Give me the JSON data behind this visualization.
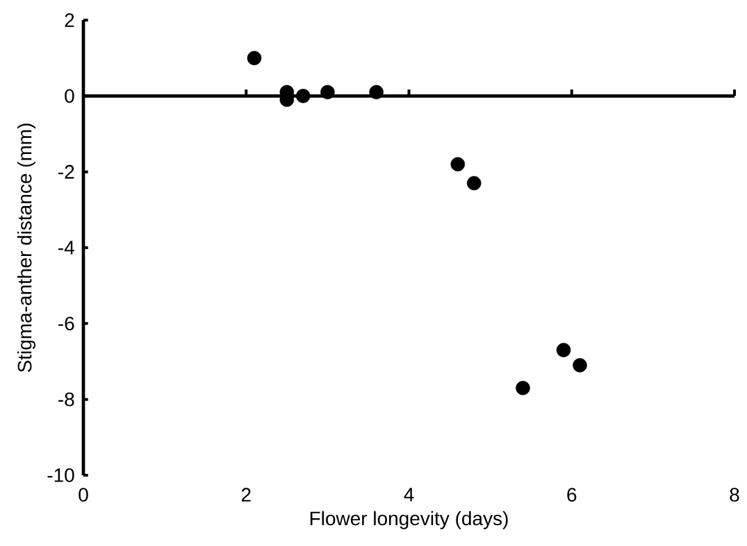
{
  "chart_data": {
    "type": "scatter",
    "xlabel": "Flower longevity (days)",
    "ylabel": "Stigma-anther distance (mm)",
    "x": [
      2.1,
      2.5,
      2.5,
      2.7,
      3.0,
      3.6,
      4.6,
      4.8,
      5.4,
      5.9,
      6.1
    ],
    "values": [
      1.0,
      0.1,
      -0.1,
      0.0,
      0.1,
      0.1,
      -1.8,
      -2.3,
      -7.7,
      -6.7,
      -7.1
    ],
    "color": "#000000",
    "marker": "circle",
    "xlim": [
      0,
      8
    ],
    "ylim": [
      -10,
      2
    ],
    "xticks": [
      0,
      2,
      4,
      6,
      8
    ],
    "yticks": [
      -10,
      -8,
      -6,
      -4,
      -2,
      0,
      2
    ]
  }
}
